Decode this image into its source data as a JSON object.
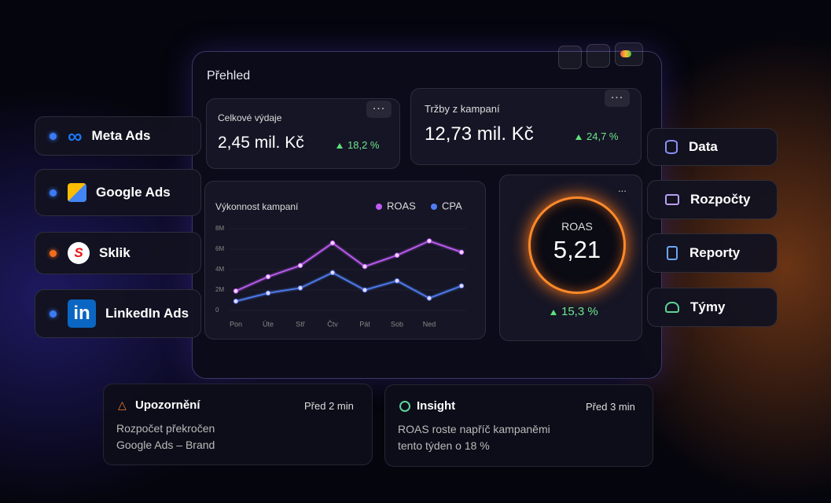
{
  "dashboard": {
    "title": "Přehled",
    "cards": [
      {
        "label": "Celkové výdaje",
        "value": "2,45 mil. Kč",
        "change": "18,2 %"
      },
      {
        "label": "Tržby z kampaní",
        "value": "12,73 mil. Kč",
        "change": "24,7 %"
      }
    ],
    "roas": {
      "label": "ROAS",
      "value": "5,21",
      "change": "15,3 %"
    }
  },
  "sources": [
    "Meta Ads",
    "Google Ads",
    "Sklik",
    "LinkedIn Ads"
  ],
  "menu": [
    "Data",
    "Rozpočty",
    "Reporty",
    "Týmy"
  ],
  "notifications": [
    {
      "title": "Upozornění",
      "time": "Před 2 min",
      "lines": [
        "Rozpočet překročen",
        "Google Ads – Brand"
      ]
    },
    {
      "title": "Insight",
      "time": "Před 3 min",
      "lines": [
        "ROAS roste napříč kampaněmi",
        "tento týden o 18 %"
      ]
    }
  ],
  "chart_data": {
    "type": "line",
    "title": "Výkonnost kampaní",
    "categories": [
      "Pon",
      "Úte",
      "Stř",
      "Čtv",
      "Pát",
      "Sob",
      "Ned",
      null
    ],
    "series": [
      {
        "name": "ROAS",
        "color": "#c05cf5",
        "values": [
          1900000,
          3300000,
          4400000,
          6600000,
          4300000,
          5400000,
          6800000,
          5700000
        ]
      },
      {
        "name": "CPA",
        "color": "#4f7ef2",
        "values": [
          900000,
          1700000,
          2200000,
          3700000,
          2000000,
          2900000,
          1200000,
          2400000
        ]
      }
    ],
    "ylim": [
      0,
      8000000
    ],
    "yticks": [
      0,
      {
        "value": 2000000,
        "label": "2M"
      },
      {
        "value": 4000000,
        "label": "4M"
      },
      {
        "value": 6000000,
        "label": "6M"
      },
      {
        "value": 8000000,
        "label": "8M"
      }
    ],
    "grid": true
  }
}
